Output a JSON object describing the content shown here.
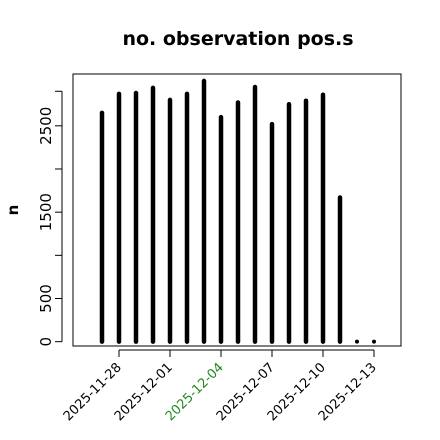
{
  "chart_data": {
    "type": "bar",
    "title": "no. observation pos.s",
    "xlabel": "",
    "ylabel": "n",
    "x_ticks": [
      "2025-11-28",
      "2025-12-01",
      "2025-12-04",
      "2025-12-07",
      "2025-12-10",
      "2025-12-13"
    ],
    "x_tick_colors": [
      "#000000",
      "#000000",
      "#228B22",
      "#000000",
      "#000000",
      "#000000"
    ],
    "y_ticks": [
      0,
      500,
      1500,
      2500
    ],
    "ylim": [
      -50,
      3100
    ],
    "grid": false,
    "bar_color": "#000000",
    "x": [
      "2025-11-27",
      "2025-11-28",
      "2025-11-29",
      "2025-11-30",
      "2025-12-01",
      "2025-12-02",
      "2025-12-03",
      "2025-12-04",
      "2025-12-05",
      "2025-12-06",
      "2025-12-07",
      "2025-12-08",
      "2025-12-09",
      "2025-12-10",
      "2025-12-11",
      "2025-12-12",
      "2025-12-13"
    ],
    "values": [
      2650,
      2870,
      2880,
      2940,
      2800,
      2870,
      3020,
      2600,
      2770,
      2950,
      2520,
      2750,
      2790,
      2860,
      1670,
      0,
      0
    ]
  }
}
